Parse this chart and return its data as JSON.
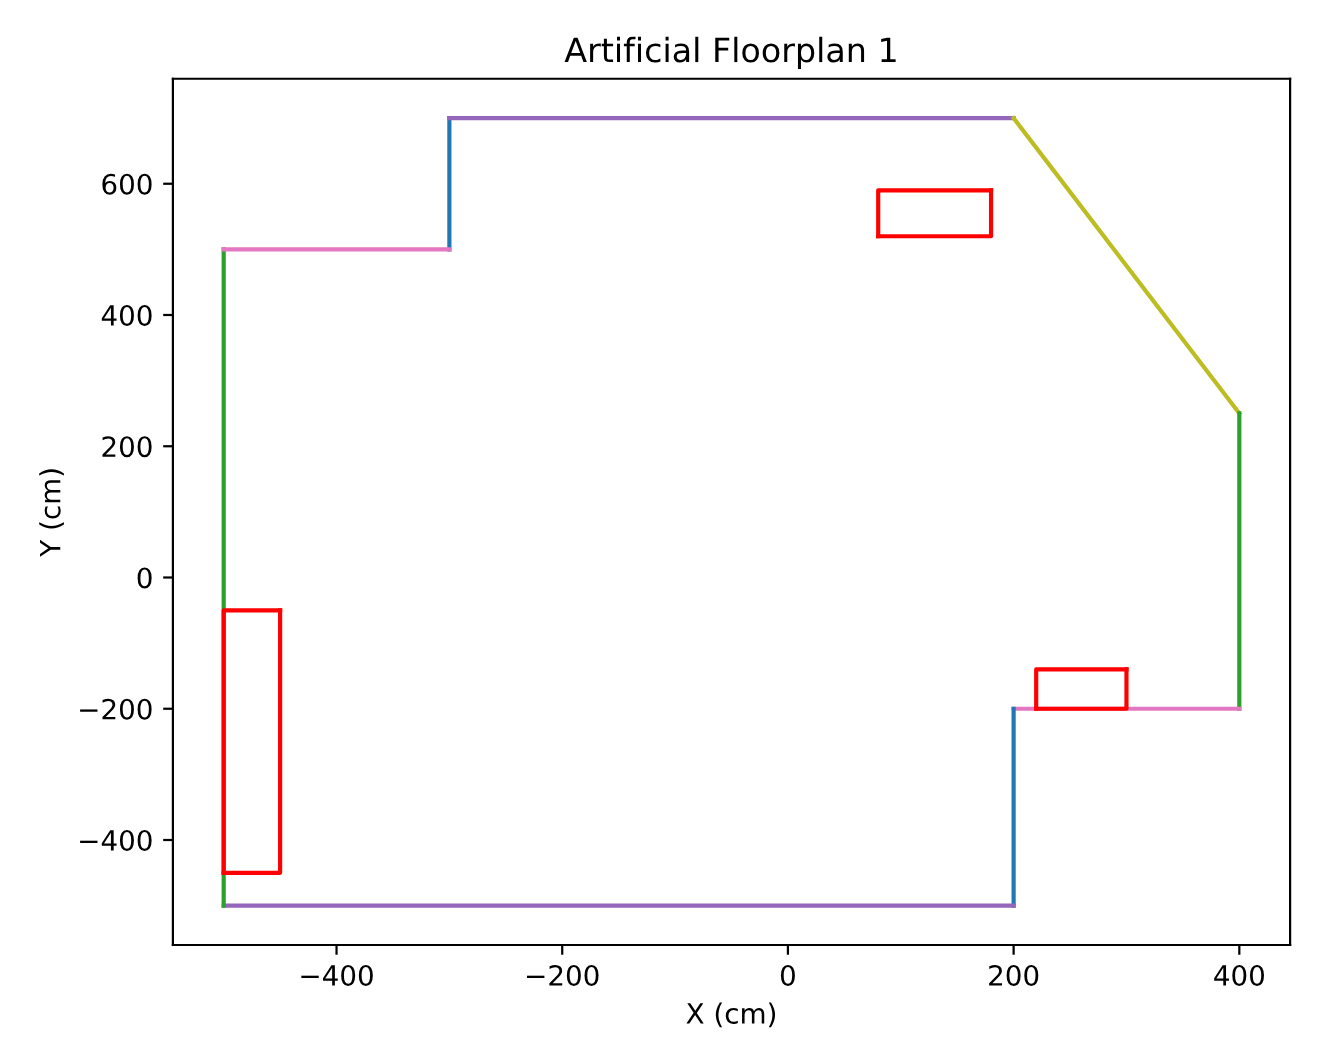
{
  "chart_data": {
    "type": "line",
    "title": "Artificial Floorplan 1",
    "xlabel": "X (cm)",
    "ylabel": "Y (cm)",
    "xlim": [
      -545,
      445
    ],
    "ylim": [
      -560,
      760
    ],
    "xticks": [
      {
        "value": -400,
        "label": "−400"
      },
      {
        "value": -200,
        "label": "−200"
      },
      0,
      200,
      400
    ],
    "yticks": [
      {
        "value": -400,
        "label": "−400"
      },
      {
        "value": -200,
        "label": "−200"
      },
      0,
      200,
      400,
      600
    ],
    "grid": false,
    "legend": false,
    "marker": "none",
    "line_style": "solid",
    "series": [
      {
        "color": "#1f77b4",
        "x": [
          -300,
          -300
        ],
        "values": [
          500,
          700
        ]
      },
      {
        "color": "#9467bd",
        "x": [
          -300,
          200
        ],
        "values": [
          700,
          700
        ]
      },
      {
        "color": "#bcbd22",
        "x": [
          200,
          400
        ],
        "values": [
          700,
          250
        ]
      },
      {
        "color": "#2ca02c",
        "x": [
          400,
          400
        ],
        "values": [
          250,
          -200
        ]
      },
      {
        "color": "#e377c2",
        "x": [
          400,
          200
        ],
        "values": [
          -200,
          -200
        ]
      },
      {
        "color": "#1f77b4",
        "x": [
          200,
          200
        ],
        "values": [
          -200,
          -500
        ]
      },
      {
        "color": "#9467bd",
        "x": [
          200,
          -500
        ],
        "values": [
          -500,
          -500
        ]
      },
      {
        "color": "#2ca02c",
        "x": [
          -500,
          -500
        ],
        "values": [
          -500,
          500
        ]
      },
      {
        "color": "#e377c2",
        "x": [
          -500,
          -300
        ],
        "values": [
          500,
          500
        ]
      },
      {
        "color": "#ff0000",
        "x": [
          80,
          180,
          180
        ],
        "values": [
          520,
          520,
          590
        ]
      },
      {
        "color": "#ff0000",
        "x": [
          180,
          80,
          80
        ],
        "values": [
          590,
          590,
          520
        ]
      },
      {
        "color": "#ff0000",
        "x": [
          -500,
          -450,
          -450
        ],
        "values": [
          -450,
          -450,
          -50
        ]
      },
      {
        "color": "#ff0000",
        "x": [
          -450,
          -500,
          -500
        ],
        "values": [
          -50,
          -50,
          -450
        ]
      },
      {
        "color": "#ff0000",
        "x": [
          220,
          300,
          300
        ],
        "values": [
          -200,
          -200,
          -140
        ]
      },
      {
        "color": "#ff0000",
        "x": [
          300,
          220,
          220
        ],
        "values": [
          -140,
          -140,
          -200
        ]
      }
    ]
  }
}
